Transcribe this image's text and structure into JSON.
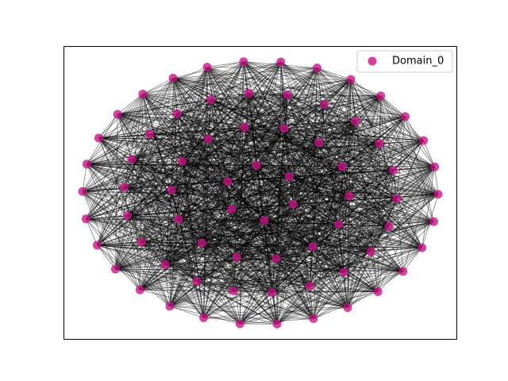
{
  "legend": {
    "label": "Domain_0"
  },
  "node_color": "#c71585"
}
